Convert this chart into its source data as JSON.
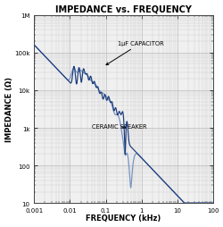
{
  "title": "IMPEDANCE vs. FREQUENCY",
  "xlabel": "FREQUENCY (kHz)",
  "ylabel": "IMPEDANCE (Ω)",
  "xlim": [
    0.001,
    100
  ],
  "ylim": [
    10,
    1000000
  ],
  "bg_color": "#ffffff",
  "plot_bg_color": "#f0f0f0",
  "grid_major_color": "#bbbbbb",
  "grid_minor_color": "#cccccc",
  "capacitor_label": "1μF CAPACITOR",
  "speaker_label": "CERAMIC SPEAKER",
  "line_color_dark": "#1a3a7a",
  "line_color_light": "#7090c0",
  "title_fontsize": 7.0,
  "label_fontsize": 6.0,
  "tick_fontsize": 5.0,
  "figsize": [
    2.51,
    2.55
  ],
  "dpi": 100
}
